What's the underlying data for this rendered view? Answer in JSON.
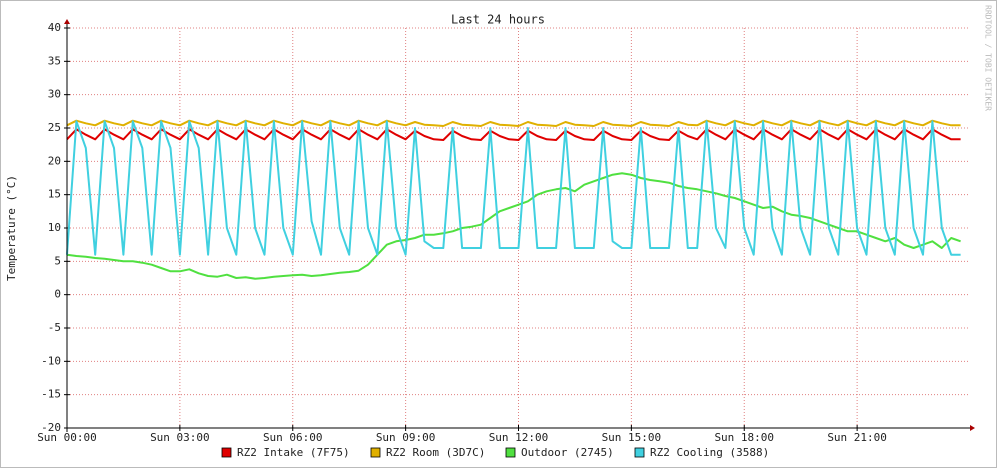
{
  "chart_data": {
    "type": "line",
    "title": "Last 24 hours",
    "y_label": "Temperature (°C)",
    "watermark": "RRDTOOL / TOBI OETIKER",
    "xlim": [
      0,
      24
    ],
    "ylim": [
      -20,
      40
    ],
    "xticks": [
      {
        "value": 0,
        "label": "Sun 00:00"
      },
      {
        "value": 3,
        "label": "Sun 03:00"
      },
      {
        "value": 6,
        "label": "Sun 06:00"
      },
      {
        "value": 9,
        "label": "Sun 09:00"
      },
      {
        "value": 12,
        "label": "Sun 12:00"
      },
      {
        "value": 15,
        "label": "Sun 15:00"
      },
      {
        "value": 18,
        "label": "Sun 18:00"
      },
      {
        "value": 21,
        "label": "Sun 21:00"
      }
    ],
    "yticks": [
      -20,
      -15,
      -10,
      -5,
      0,
      5,
      10,
      15,
      20,
      25,
      30,
      35,
      40
    ],
    "grid": true,
    "x": [
      0,
      0.25,
      0.5,
      0.75,
      1,
      1.25,
      1.5,
      1.75,
      2,
      2.25,
      2.5,
      2.75,
      3,
      3.25,
      3.5,
      3.75,
      4,
      4.25,
      4.5,
      4.75,
      5,
      5.25,
      5.5,
      5.75,
      6,
      6.25,
      6.5,
      6.75,
      7,
      7.25,
      7.5,
      7.75,
      8,
      8.25,
      8.5,
      8.75,
      9,
      9.25,
      9.5,
      9.75,
      10,
      10.25,
      10.5,
      10.75,
      11,
      11.25,
      11.5,
      11.75,
      12,
      12.25,
      12.5,
      12.75,
      13,
      13.25,
      13.5,
      13.75,
      14,
      14.25,
      14.5,
      14.75,
      15,
      15.25,
      15.5,
      15.75,
      16,
      16.25,
      16.5,
      16.75,
      17,
      17.25,
      17.5,
      17.75,
      18,
      18.25,
      18.5,
      18.75,
      19,
      19.25,
      19.5,
      19.75,
      20,
      20.25,
      20.5,
      20.75,
      21,
      21.25,
      21.5,
      21.75,
      22,
      22.25,
      22.5,
      22.75,
      23,
      23.25,
      23.5,
      23.75
    ],
    "series": [
      {
        "name": "RZ2 Intake (7F75)",
        "color": "#e00000",
        "values": [
          23.3,
          24.8,
          24,
          23.3,
          24.8,
          24,
          23.3,
          24.8,
          24,
          23.3,
          24.8,
          24,
          23.3,
          24.8,
          24,
          23.3,
          24.8,
          24,
          23.3,
          24.8,
          24,
          23.3,
          24.8,
          24,
          23.3,
          24.8,
          24,
          23.3,
          24.8,
          24,
          23.3,
          24.8,
          24,
          23.3,
          24.8,
          24,
          23.3,
          24.6,
          23.8,
          23.3,
          23.2,
          24.6,
          23.8,
          23.3,
          23.2,
          24.6,
          23.8,
          23.3,
          23.2,
          24.6,
          23.8,
          23.3,
          23.2,
          24.6,
          23.8,
          23.3,
          23.2,
          24.6,
          23.8,
          23.3,
          23.2,
          24.6,
          23.8,
          23.3,
          23.2,
          24.6,
          23.8,
          23.3,
          24.8,
          24,
          23.3,
          24.8,
          24,
          23.3,
          24.8,
          24,
          23.3,
          24.8,
          24,
          23.3,
          24.8,
          24,
          23.3,
          24.8,
          24,
          23.3,
          24.8,
          24,
          23.3,
          24.8,
          24,
          23.3,
          24.8,
          24,
          23.3,
          23.3
        ]
      },
      {
        "name": "RZ2 Room (3D7C)",
        "color": "#e0b000",
        "values": [
          25.4,
          26.1,
          25.7,
          25.4,
          26.1,
          25.7,
          25.4,
          26.1,
          25.7,
          25.4,
          26.1,
          25.7,
          25.4,
          26.1,
          25.7,
          25.4,
          26.1,
          25.7,
          25.4,
          26.1,
          25.7,
          25.4,
          26.1,
          25.7,
          25.4,
          26.1,
          25.7,
          25.4,
          26.1,
          25.7,
          25.4,
          26.1,
          25.7,
          25.4,
          26.1,
          25.7,
          25.4,
          25.9,
          25.5,
          25.4,
          25.3,
          25.9,
          25.5,
          25.4,
          25.3,
          25.9,
          25.5,
          25.4,
          25.3,
          25.9,
          25.5,
          25.4,
          25.3,
          25.9,
          25.5,
          25.4,
          25.3,
          25.9,
          25.5,
          25.4,
          25.3,
          25.9,
          25.5,
          25.4,
          25.3,
          25.9,
          25.5,
          25.4,
          26.1,
          25.7,
          25.4,
          26.1,
          25.7,
          25.4,
          26.1,
          25.7,
          25.4,
          26.1,
          25.7,
          25.4,
          26.1,
          25.7,
          25.4,
          26.1,
          25.7,
          25.4,
          26.1,
          25.7,
          25.4,
          26.1,
          25.7,
          25.4,
          26.1,
          25.7,
          25.4,
          25.4
        ]
      },
      {
        "name": "Outdoor (2745)",
        "color": "#50e040",
        "values": [
          6,
          5.8,
          5.7,
          5.5,
          5.4,
          5.2,
          5,
          5,
          4.8,
          4.5,
          4,
          3.5,
          3.5,
          3.8,
          3.2,
          2.8,
          2.7,
          3,
          2.5,
          2.6,
          2.4,
          2.5,
          2.7,
          2.8,
          2.9,
          3,
          2.8,
          2.9,
          3.1,
          3.3,
          3.4,
          3.6,
          4.5,
          6,
          7.5,
          8,
          8.2,
          8.5,
          9,
          9,
          9.2,
          9.5,
          10,
          10.2,
          10.5,
          11.5,
          12.5,
          13,
          13.5,
          14,
          15,
          15.5,
          15.8,
          16,
          15.5,
          16.5,
          17,
          17.5,
          18,
          18.2,
          18,
          17.5,
          17.2,
          17,
          16.8,
          16.3,
          16,
          15.8,
          15.5,
          15.2,
          14.8,
          14.5,
          14,
          13.5,
          13,
          13.2,
          12.5,
          12,
          11.8,
          11.5,
          11,
          10.5,
          10,
          9.5,
          9.5,
          9,
          8.5,
          8,
          8.5,
          7.5,
          7,
          7.5,
          8,
          7,
          8.5,
          8
        ]
      },
      {
        "name": "RZ2 Cooling (3588)",
        "color": "#40d0e0",
        "values": [
          6,
          26,
          22,
          6,
          26,
          22,
          6,
          26,
          22,
          6,
          26,
          22,
          6,
          26,
          22,
          6,
          26,
          10,
          6,
          26,
          10,
          6,
          26,
          10,
          6,
          26,
          11,
          6,
          26,
          10,
          6,
          26,
          10,
          6,
          26,
          10,
          6,
          25,
          8,
          7,
          7,
          25,
          7,
          7,
          7,
          25,
          7,
          7,
          7,
          25,
          7,
          7,
          7,
          25,
          7,
          7,
          7,
          25,
          8,
          7,
          7,
          25,
          7,
          7,
          7,
          25,
          7,
          7,
          26,
          10,
          7,
          26,
          10,
          6,
          26,
          10,
          6,
          26,
          10,
          6,
          26,
          10,
          6,
          26,
          10,
          6,
          26,
          10,
          6,
          26,
          10,
          6,
          26,
          10,
          6,
          6
        ]
      }
    ]
  }
}
